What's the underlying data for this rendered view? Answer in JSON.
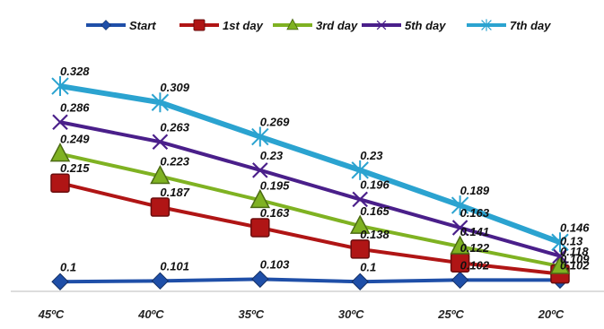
{
  "chart_data": {
    "type": "line",
    "title": "",
    "xlabel": "",
    "ylabel": "",
    "categories": [
      "45ºC",
      "40ºC",
      "35ºC",
      "30ºC",
      "25ºC",
      "20ºC"
    ],
    "ylim": [
      0.07,
      0.35
    ],
    "grid": false,
    "legend_position": "top",
    "series": [
      {
        "name": "Start",
        "color": "#1f4fa8",
        "marker": "diamond",
        "values": [
          0.1,
          0.101,
          0.103,
          0.1,
          0.102,
          0.102
        ],
        "labels": [
          "0.1",
          "0.101",
          "0.103",
          "0.1",
          "0.102",
          "0.102"
        ]
      },
      {
        "name": "1st day",
        "color": "#b01515",
        "marker": "square",
        "values": [
          0.215,
          0.187,
          0.163,
          0.138,
          0.122,
          0.109
        ],
        "labels": [
          "0.215",
          "0.187",
          "0.163",
          "0.138",
          "0.122",
          "0.109"
        ]
      },
      {
        "name": "3rd day",
        "color": "#7fb222",
        "marker": "triangle",
        "values": [
          0.249,
          0.223,
          0.195,
          0.165,
          0.141,
          0.118
        ],
        "labels": [
          "0.249",
          "0.223",
          "0.195",
          "0.165",
          "0.141",
          "0.118"
        ]
      },
      {
        "name": "5th day",
        "color": "#4a1f8a",
        "marker": "x",
        "values": [
          0.286,
          0.263,
          0.23,
          0.196,
          0.163,
          0.13
        ],
        "labels": [
          "0.286",
          "0.263",
          "0.23",
          "0.196",
          "0.163",
          "0.13"
        ]
      },
      {
        "name": "7th day",
        "color": "#2ba3d0",
        "marker": "star",
        "values": [
          0.328,
          0.309,
          0.269,
          0.23,
          0.189,
          0.146
        ],
        "labels": [
          "0.328",
          "0.309",
          "0.269",
          "0.23",
          "0.189",
          "0.146"
        ]
      }
    ]
  }
}
